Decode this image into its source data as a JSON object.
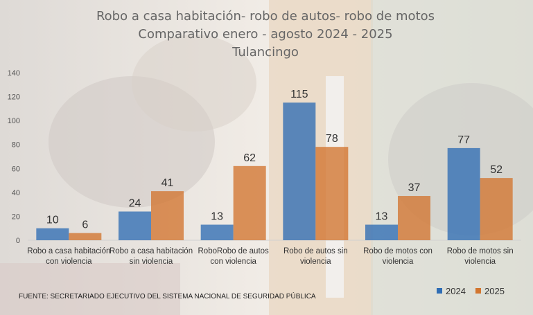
{
  "chart_data": {
    "type": "bar",
    "title": "Robo a casa habitación- robo de autos- robo de motos",
    "subtitle": "Comparativo enero - agosto 2024 - 2025",
    "subtitle2": "Tulancingo",
    "categories": [
      [
        "Robo a casa habitación",
        "con violencia"
      ],
      [
        "Robo a casa habitación",
        "sin violencia"
      ],
      [
        "RoboRobo de autos",
        "con violencia"
      ],
      [
        "Robo de autos sin",
        "violencia"
      ],
      [
        "Robo de motos con",
        "violencia"
      ],
      [
        "Robo de motos sin",
        "violencia"
      ]
    ],
    "series": [
      {
        "name": "2024",
        "values": [
          10,
          24,
          13,
          115,
          13,
          77
        ]
      },
      {
        "name": "2025",
        "values": [
          6,
          41,
          62,
          78,
          37,
          52
        ]
      }
    ],
    "ylim": [
      0,
      140
    ],
    "yticks": [
      0,
      20,
      40,
      60,
      80,
      100,
      120,
      140
    ],
    "grid": false,
    "legend_position": "bottom-right",
    "colors": {
      "2024": "#2f6db4",
      "2025": "#d2752f"
    },
    "source": "FUENTE: SECRETARIADO EJECUTIVO DEL SISTEMA NACIONAL DE SEGURIDAD PÚBLICA"
  }
}
